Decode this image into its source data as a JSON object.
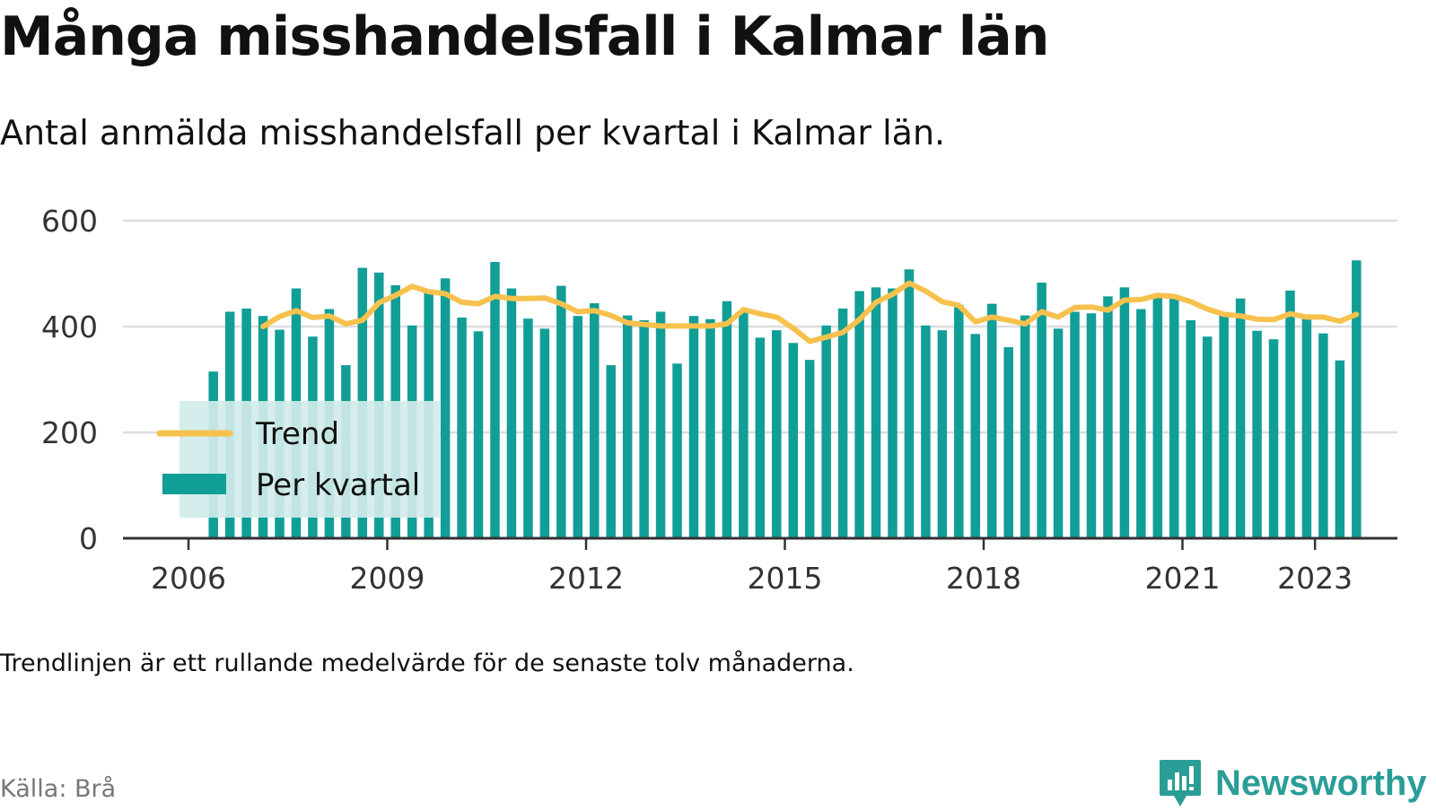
{
  "header": {
    "title": "Många misshandelsfall i Kalmar län",
    "subtitle": "Antal anmälda misshandelsfall per kvartal i Kalmar län."
  },
  "footer": {
    "note": "Trendlinjen är ett rullande medelvärde för de senaste tolv månaderna.",
    "source": "Källa: Brå",
    "brand": "Newsworthy",
    "brand_icon": "chart-speech-bubble-icon"
  },
  "colors": {
    "bar": "#119e96",
    "trend": "#f7c14e",
    "grid": "#dddddd",
    "axis": "#333333",
    "legend_bg": "#d1ecea",
    "brand": "#2a9d97"
  },
  "chart_data": {
    "type": "bar",
    "title": "Många misshandelsfall i Kalmar län",
    "xlabel": "",
    "ylabel": "",
    "ylim": [
      0,
      600
    ],
    "yticks": [
      0,
      200,
      400,
      600
    ],
    "xticks": [
      "2006",
      "2009",
      "2012",
      "2015",
      "2018",
      "2021",
      "2023"
    ],
    "grid": true,
    "legend_position": "bottom-left",
    "x_start": "2006 Q1",
    "x": [
      "2006 Q1",
      "2006 Q2",
      "2006 Q3",
      "2006 Q4",
      "2007 Q1",
      "2007 Q2",
      "2007 Q3",
      "2007 Q4",
      "2008 Q1",
      "2008 Q2",
      "2008 Q3",
      "2008 Q4",
      "2009 Q1",
      "2009 Q2",
      "2009 Q3",
      "2009 Q4",
      "2010 Q1",
      "2010 Q2",
      "2010 Q3",
      "2010 Q4",
      "2011 Q1",
      "2011 Q2",
      "2011 Q3",
      "2011 Q4",
      "2012 Q1",
      "2012 Q2",
      "2012 Q3",
      "2012 Q4",
      "2013 Q1",
      "2013 Q2",
      "2013 Q3",
      "2013 Q4",
      "2014 Q1",
      "2014 Q2",
      "2014 Q3",
      "2014 Q4",
      "2015 Q1",
      "2015 Q2",
      "2015 Q3",
      "2015 Q4",
      "2016 Q1",
      "2016 Q2",
      "2016 Q3",
      "2016 Q4",
      "2017 Q1",
      "2017 Q2",
      "2017 Q3",
      "2017 Q4",
      "2018 Q1",
      "2018 Q2",
      "2018 Q3",
      "2018 Q4",
      "2019 Q1",
      "2019 Q2",
      "2019 Q3",
      "2019 Q4",
      "2020 Q1",
      "2020 Q2",
      "2020 Q3",
      "2020 Q4",
      "2021 Q1",
      "2021 Q2",
      "2021 Q3",
      "2021 Q4",
      "2022 Q1",
      "2022 Q2",
      "2022 Q3",
      "2022 Q4",
      "2023 Q1",
      "2023 Q2"
    ],
    "series": [
      {
        "name": "Per kvartal",
        "type": "bar",
        "values": [
          315,
          428,
          434,
          420,
          394,
          472,
          381,
          433,
          327,
          511,
          502,
          478,
          402,
          470,
          491,
          417,
          391,
          522,
          472,
          415,
          396,
          477,
          420,
          444,
          327,
          421,
          412,
          428,
          330,
          420,
          414,
          448,
          427,
          379,
          393,
          369,
          337,
          402,
          434,
          467,
          474,
          472,
          508,
          402,
          393,
          441,
          386,
          443,
          361,
          421,
          483,
          396,
          428,
          425,
          457,
          474,
          433,
          455,
          454,
          412,
          381,
          421,
          453,
          392,
          376,
          468,
          419,
          387,
          336,
          525
        ]
      },
      {
        "name": "Trend",
        "type": "line",
        "values": [
          null,
          null,
          null,
          400,
          419,
          430,
          417,
          420,
          405,
          412,
          445,
          459,
          476,
          466,
          462,
          446,
          443,
          457,
          453,
          453,
          454,
          443,
          428,
          430,
          421,
          407,
          404,
          401,
          401,
          401,
          401,
          405,
          432,
          424,
          418,
          397,
          372,
          380,
          389,
          413,
          446,
          461,
          482,
          467,
          447,
          440,
          409,
          418,
          412,
          405,
          428,
          418,
          436,
          437,
          431,
          450,
          451,
          459,
          457,
          447,
          433,
          423,
          420,
          414,
          413,
          424,
          418,
          418,
          410,
          423
        ]
      }
    ]
  }
}
